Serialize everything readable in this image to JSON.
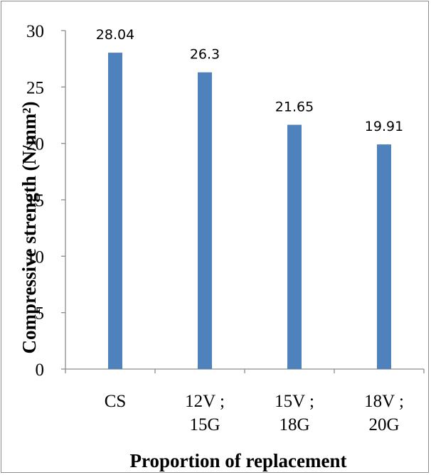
{
  "chart_data": {
    "type": "bar",
    "categories": [
      [
        "CS"
      ],
      [
        "12V ;",
        "15G"
      ],
      [
        "15V ;",
        "18G"
      ],
      [
        "18V ;",
        "20G"
      ]
    ],
    "values": [
      28.04,
      26.3,
      21.65,
      19.91
    ],
    "data_labels": [
      "28.04",
      "26.3",
      "21.65",
      "19.91"
    ],
    "y_ticks": [
      "0",
      "5",
      "10",
      "15",
      "20",
      "25",
      "30"
    ],
    "y_tick_values": [
      0,
      5,
      10,
      15,
      20,
      25,
      30
    ],
    "xlabel": "Proportion of replacement",
    "ylabel": "Compressive strength (N/mm²)",
    "ylim": [
      0,
      30
    ],
    "grid": false,
    "legend": "none",
    "bar_color": "#4f81bd"
  }
}
